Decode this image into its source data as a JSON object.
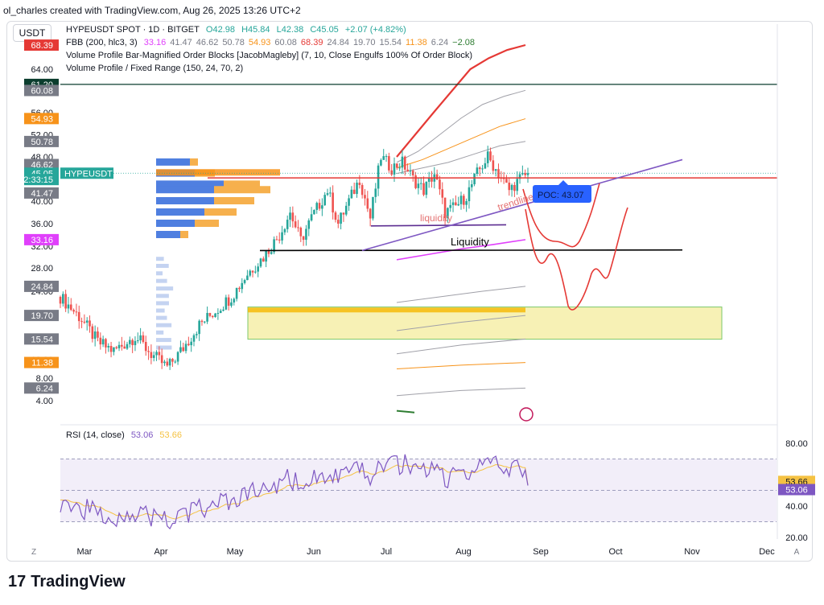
{
  "header": {
    "text": "ol_charles created with TradingView.com, Aug 26, 2025 13:26 UTC+2"
  },
  "currency_button": "USDT",
  "legend": {
    "row1": {
      "symbol": "HYPEUSDT SPOT · 1D · BITGET",
      "o": "O42.98",
      "h": "H45.84",
      "l": "L42.38",
      "c": "C45.05",
      "chg": "+2.07 (+4.82%)"
    },
    "row2": {
      "name": "FBB (200, hlc3, 3)",
      "vals": [
        "33.16",
        "41.47",
        "46.62",
        "50.78",
        "54.93",
        "60.08",
        "68.39",
        "24.84",
        "19.70",
        "15.54",
        "11.38",
        "6.24",
        "−2.08"
      ],
      "colors": [
        "#e040fb",
        "#787b86",
        "#787b86",
        "#787b86",
        "#f7931a",
        "#787b86",
        "#e53935",
        "#787b86",
        "#787b86",
        "#787b86",
        "#f7931a",
        "#787b86",
        "#2e7d32"
      ]
    },
    "row3": "Volume Profile Bar-Magnified Order Blocks [JacobMagleby] (7, 10, Close Engulfs 100% Of Order Block)",
    "row4": "Volume Profile / Fixed Range (150, 24, 70, 2)",
    "rsi": {
      "name": "RSI (14, close)",
      "v1": "53.06",
      "v2": "53.66"
    }
  },
  "footer": {
    "brand": "TradingView"
  },
  "colors": {
    "up": "#26a69a",
    "down": "#ef5350",
    "rsi": "#7e57c2",
    "rsi_ma": "#f5c242",
    "upper": "#e53935",
    "lower": "#e040fb"
  },
  "chart_data": {
    "type": "candlestick",
    "symbol": "HYPEUSDT",
    "price_axis_ticks": [
      "64.00",
      "56.00",
      "52.00",
      "48.00",
      "40.00",
      "36.00",
      "32.00",
      "28.00",
      "24.00",
      "16.00",
      "12.00",
      "8.00",
      "4.00"
    ],
    "price_tick_values": [
      64,
      56,
      52,
      48,
      40,
      36,
      32,
      28,
      24,
      16,
      12,
      8,
      4
    ],
    "price_badges": [
      {
        "label": "68.39",
        "value": 68.39,
        "color": "#e53935"
      },
      {
        "label": "61.20",
        "value": 61.2,
        "color": "#0b3d2e"
      },
      {
        "label": "60.08",
        "value": 60.08,
        "color": "#787b86"
      },
      {
        "label": "54.93",
        "value": 54.93,
        "color": "#f7931a"
      },
      {
        "label": "50.78",
        "value": 50.78,
        "color": "#787b86"
      },
      {
        "label": "46.62",
        "value": 46.62,
        "color": "#787b86"
      },
      {
        "label": "45.05",
        "value": 45.05,
        "color": "#26a69a"
      },
      {
        "label": "12:33:15",
        "value": 43.9,
        "color": "#26a69a"
      },
      {
        "label": "41.47",
        "value": 41.47,
        "color": "#787b86"
      },
      {
        "label": "33.16",
        "value": 33.16,
        "color": "#e040fb"
      },
      {
        "label": "24.84",
        "value": 24.84,
        "color": "#787b86"
      },
      {
        "label": "19.70",
        "value": 19.7,
        "color": "#787b86"
      },
      {
        "label": "15.54",
        "value": 15.54,
        "color": "#787b86"
      },
      {
        "label": "11.38",
        "value": 11.38,
        "color": "#f7931a"
      },
      {
        "label": "6.24",
        "value": 6.24,
        "color": "#787b86"
      }
    ],
    "symbol_tag": "HYPEUSDT",
    "months": [
      "Mar",
      "Apr",
      "May",
      "Jun",
      "Jul",
      "Aug",
      "Sep",
      "Oct",
      "Nov",
      "Dec"
    ],
    "annotations": {
      "liquidity_lower": "liquidity",
      "liquidity_main": "Liquidity",
      "trendline": "trendline",
      "poc": "POC: 43.07"
    },
    "key_levels": {
      "resistance": 45.05,
      "horizontal_61": 61.2,
      "liquidity": 31.2,
      "poc": 43.07
    },
    "rsi_ticks": [
      "80.00",
      "40.00",
      "20.00"
    ],
    "rsi_tick_values": [
      80,
      40,
      20
    ],
    "rsi_badges": [
      "53.66",
      "53.06"
    ],
    "rsi_last": 53.06,
    "rsi_ma_last": 53.66
  }
}
